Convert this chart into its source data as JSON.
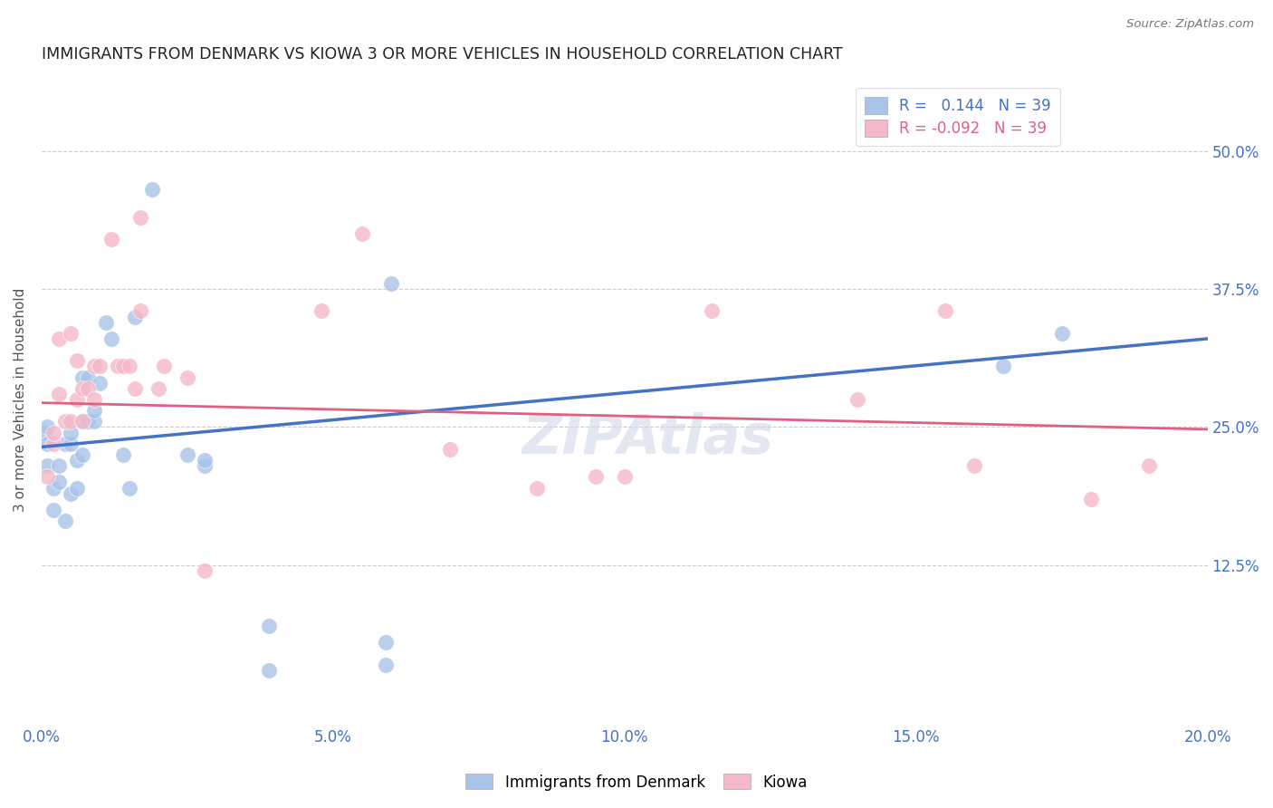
{
  "title": "IMMIGRANTS FROM DENMARK VS KIOWA 3 OR MORE VEHICLES IN HOUSEHOLD CORRELATION CHART",
  "source": "Source: ZipAtlas.com",
  "ylabel": "3 or more Vehicles in Household",
  "xlim": [
    0.0,
    0.2
  ],
  "ylim": [
    -0.02,
    0.57
  ],
  "blue_R": 0.144,
  "pink_R": -0.092,
  "N": 39,
  "blue_color": "#a8c4e8",
  "pink_color": "#f5b8c8",
  "blue_line_color": "#4472c4",
  "pink_line_color": "#e06080",
  "legend_blue_label": "Immigrants from Denmark",
  "legend_pink_label": "Kiowa",
  "blue_trend_x": [
    0.0,
    0.2
  ],
  "blue_trend_y": [
    0.232,
    0.33
  ],
  "pink_trend_x": [
    0.0,
    0.2
  ],
  "pink_trend_y": [
    0.272,
    0.248
  ],
  "blue_x": [
    0.0005,
    0.001,
    0.001,
    0.001,
    0.002,
    0.002,
    0.003,
    0.003,
    0.004,
    0.004,
    0.005,
    0.005,
    0.005,
    0.006,
    0.006,
    0.007,
    0.007,
    0.007,
    0.008,
    0.008,
    0.009,
    0.009,
    0.01,
    0.011,
    0.012,
    0.014,
    0.015,
    0.016,
    0.019,
    0.025,
    0.028,
    0.028,
    0.039,
    0.039,
    0.059,
    0.059,
    0.06,
    0.165,
    0.175
  ],
  "blue_y": [
    0.245,
    0.215,
    0.235,
    0.25,
    0.175,
    0.195,
    0.2,
    0.215,
    0.165,
    0.235,
    0.19,
    0.235,
    0.245,
    0.195,
    0.22,
    0.225,
    0.255,
    0.295,
    0.255,
    0.295,
    0.255,
    0.265,
    0.29,
    0.345,
    0.33,
    0.225,
    0.195,
    0.35,
    0.465,
    0.225,
    0.215,
    0.22,
    0.03,
    0.07,
    0.035,
    0.055,
    0.38,
    0.305,
    0.335
  ],
  "pink_x": [
    0.001,
    0.002,
    0.002,
    0.003,
    0.003,
    0.004,
    0.005,
    0.005,
    0.006,
    0.006,
    0.007,
    0.007,
    0.008,
    0.009,
    0.009,
    0.01,
    0.012,
    0.013,
    0.014,
    0.015,
    0.016,
    0.017,
    0.017,
    0.02,
    0.021,
    0.025,
    0.028,
    0.048,
    0.055,
    0.07,
    0.085,
    0.095,
    0.1,
    0.115,
    0.14,
    0.155,
    0.16,
    0.18,
    0.19
  ],
  "pink_y": [
    0.205,
    0.235,
    0.245,
    0.28,
    0.33,
    0.255,
    0.255,
    0.335,
    0.275,
    0.31,
    0.255,
    0.285,
    0.285,
    0.275,
    0.305,
    0.305,
    0.42,
    0.305,
    0.305,
    0.305,
    0.285,
    0.44,
    0.355,
    0.285,
    0.305,
    0.295,
    0.12,
    0.355,
    0.425,
    0.23,
    0.195,
    0.205,
    0.205,
    0.355,
    0.275,
    0.355,
    0.215,
    0.185,
    0.215
  ],
  "ytick_vals": [
    0.125,
    0.25,
    0.375,
    0.5
  ],
  "xtick_vals": [
    0.0,
    0.05,
    0.1,
    0.15,
    0.2
  ],
  "grid_color": "#cccccc",
  "tick_color": "#4472c4"
}
